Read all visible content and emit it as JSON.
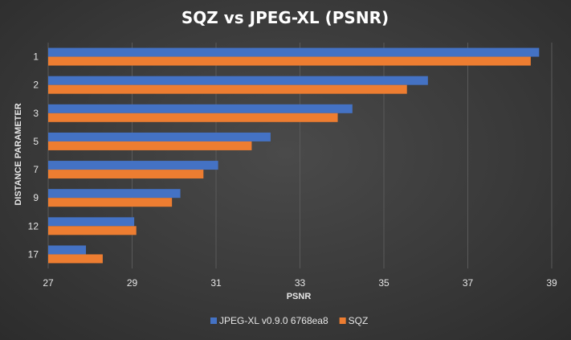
{
  "chart_data": {
    "type": "bar",
    "orientation": "horizontal",
    "title": "SQZ vs JPEG-XL  (PSNR)",
    "xlabel": "PSNR",
    "ylabel": "DISTANCE PARAMETER",
    "categories": [
      "1",
      "2",
      "3",
      "5",
      "7",
      "9",
      "12",
      "17"
    ],
    "xlim": [
      27,
      39
    ],
    "xticks": [
      "27",
      "29",
      "31",
      "33",
      "35",
      "37",
      "39"
    ],
    "grid": "vertical",
    "legend_position": "bottom",
    "series": [
      {
        "name": "JPEG-XL v0.9.0 6768ea8",
        "color": "#4472c4",
        "values": [
          38.7,
          36.05,
          34.25,
          32.3,
          31.05,
          30.15,
          29.05,
          27.9
        ]
      },
      {
        "name": "SQZ",
        "color": "#ed7d31",
        "values": [
          38.5,
          35.55,
          33.9,
          31.85,
          30.7,
          29.95,
          29.1,
          28.3
        ]
      }
    ]
  }
}
